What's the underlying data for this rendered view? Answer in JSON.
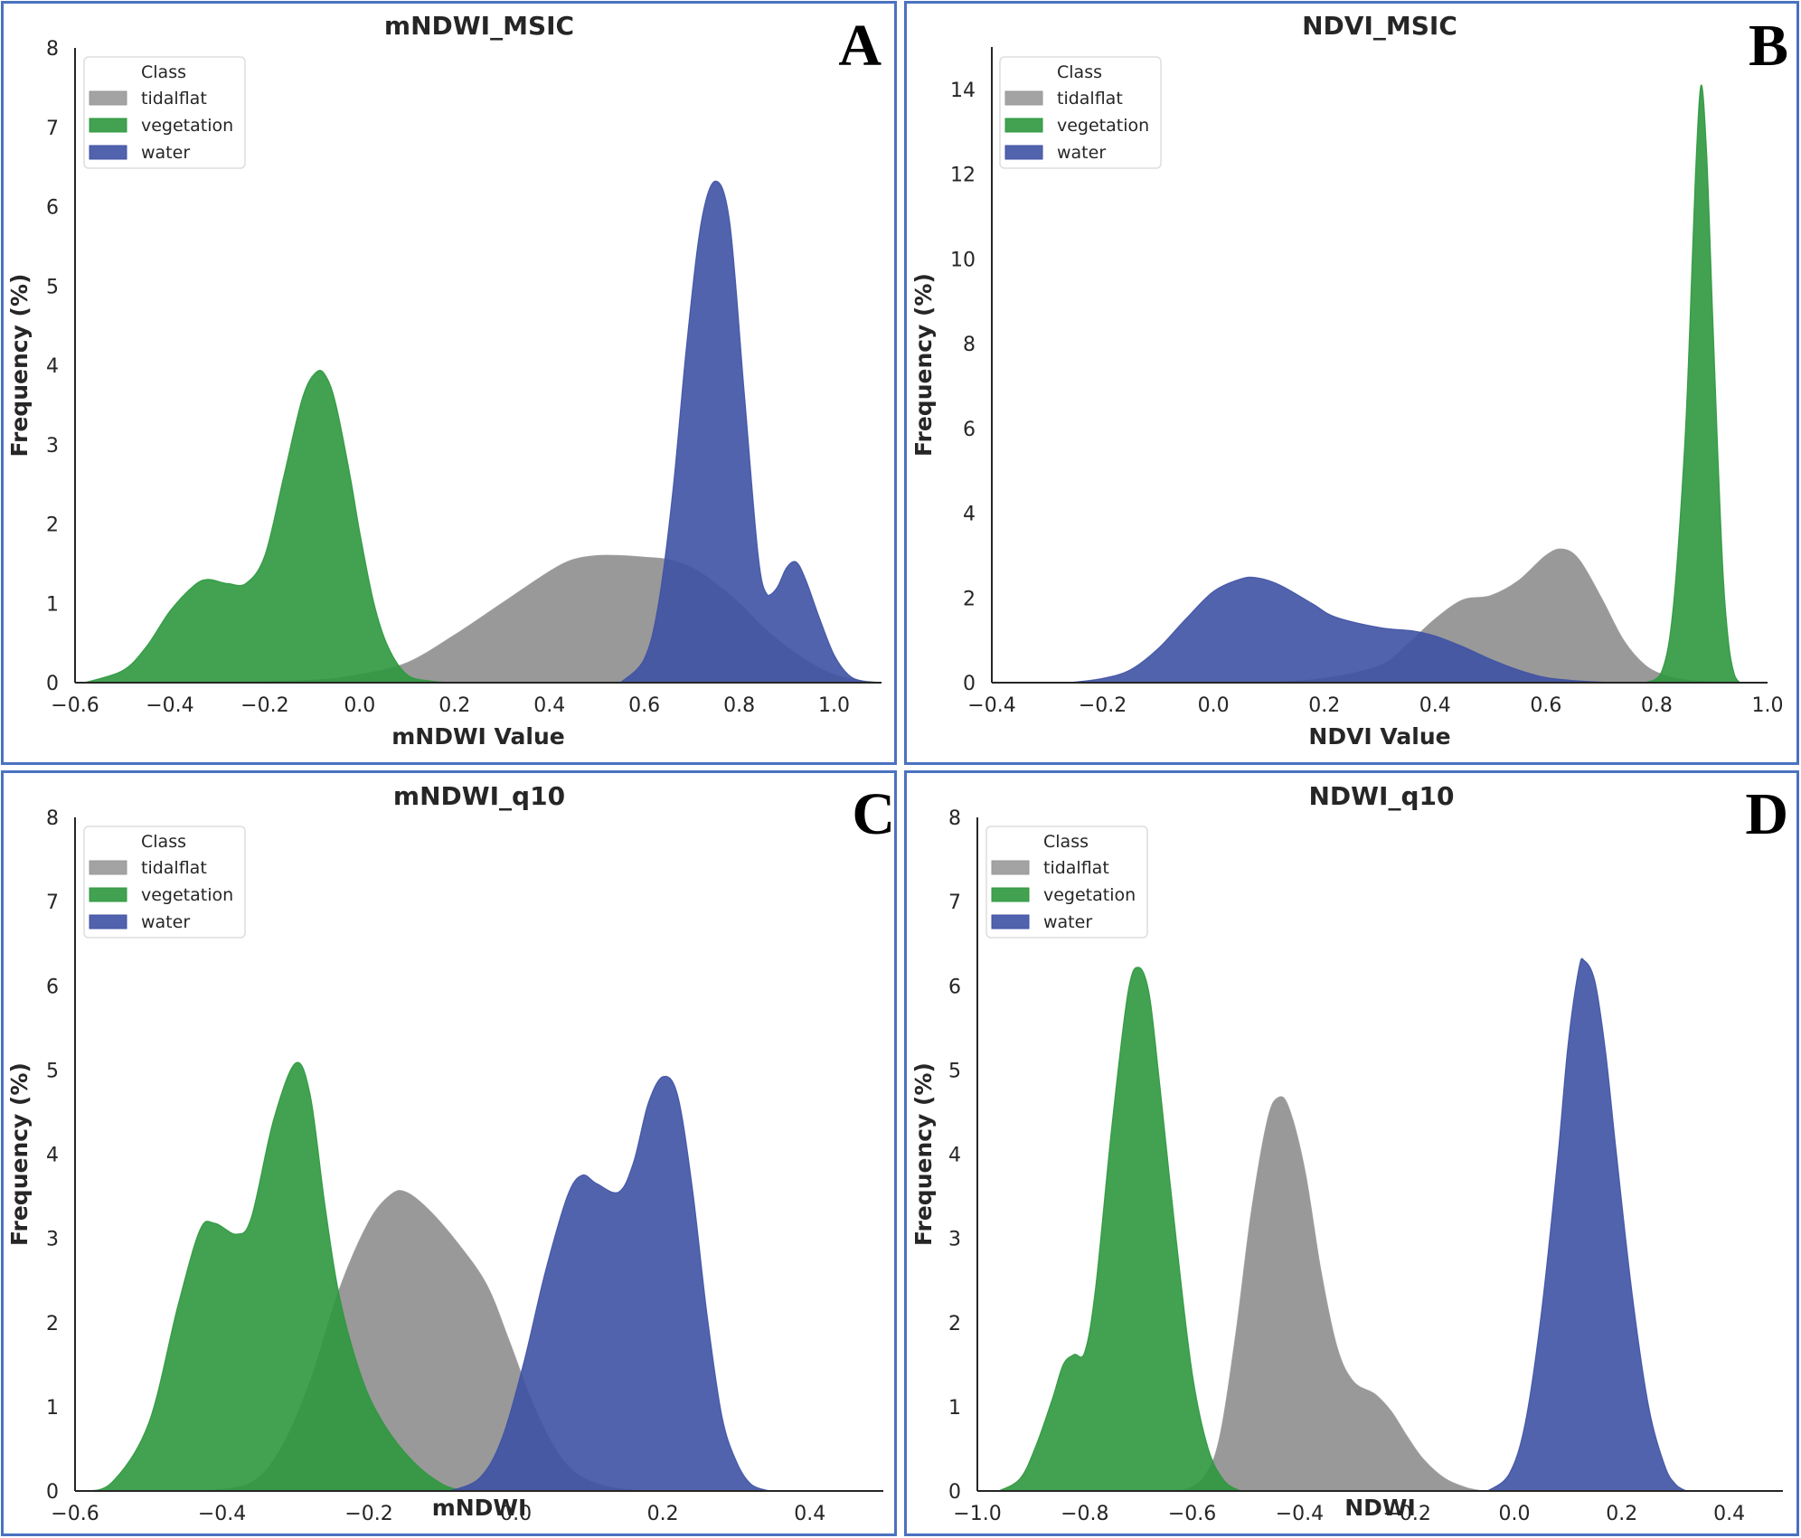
{
  "figure": {
    "panels": [
      "A",
      "B",
      "C",
      "D"
    ]
  },
  "legend": {
    "title": "Class",
    "entries": [
      "tidalflat",
      "vegetation",
      "water"
    ]
  },
  "colors": {
    "tidalflat": "#999999",
    "vegetation": "#2e983e",
    "water": "#3f52a4",
    "panel_border": "#4a72c0",
    "axis": "#262626"
  },
  "chart_data": [
    {
      "type": "area",
      "panel_letter": "A",
      "title": "mNDWI_MSIC",
      "xlabel": "mNDWI Value",
      "ylabel": "Frequency (%)",
      "xlim": [
        -0.6,
        1.1
      ],
      "ylim": [
        0,
        8
      ],
      "xticks": [
        "−0.6",
        "−0.4",
        "−0.2",
        "0.0",
        "0.2",
        "0.4",
        "0.6",
        "0.8",
        "1.0"
      ],
      "xtick_values": [
        -0.6,
        -0.4,
        -0.2,
        0.0,
        0.2,
        0.4,
        0.6,
        0.8,
        1.0
      ],
      "yticks": [
        "0",
        "1",
        "2",
        "3",
        "4",
        "5",
        "6",
        "7",
        "8"
      ],
      "ytick_values": [
        0,
        1,
        2,
        3,
        4,
        5,
        6,
        7,
        8
      ],
      "legend_position": "top-left",
      "series": [
        {
          "name": "tidalflat",
          "x": [
            -0.3,
            -0.1,
            0.0,
            0.1,
            0.2,
            0.3,
            0.4,
            0.45,
            0.5,
            0.55,
            0.6,
            0.65,
            0.7,
            0.75,
            0.8,
            0.85,
            0.9,
            0.95,
            1.0,
            1.05,
            1.1
          ],
          "y": [
            0.0,
            0.03,
            0.1,
            0.25,
            0.6,
            1.0,
            1.4,
            1.55,
            1.6,
            1.6,
            1.58,
            1.55,
            1.45,
            1.25,
            1.0,
            0.7,
            0.45,
            0.25,
            0.1,
            0.03,
            0.0
          ]
        },
        {
          "name": "vegetation",
          "x": [
            -0.58,
            -0.5,
            -0.45,
            -0.4,
            -0.35,
            -0.32,
            -0.28,
            -0.24,
            -0.2,
            -0.16,
            -0.12,
            -0.09,
            -0.07,
            -0.05,
            -0.02,
            0.0,
            0.03,
            0.06,
            0.1,
            0.15,
            0.2
          ],
          "y": [
            0.0,
            0.15,
            0.45,
            0.9,
            1.22,
            1.3,
            1.25,
            1.25,
            1.6,
            2.6,
            3.6,
            3.92,
            3.85,
            3.5,
            2.6,
            1.9,
            1.0,
            0.45,
            0.1,
            0.02,
            0.0
          ]
        },
        {
          "name": "water",
          "x": [
            0.55,
            0.6,
            0.63,
            0.66,
            0.69,
            0.72,
            0.75,
            0.78,
            0.81,
            0.84,
            0.86,
            0.88,
            0.9,
            0.92,
            0.94,
            0.97,
            1.0,
            1.03,
            1.06,
            1.1
          ],
          "y": [
            0.0,
            0.3,
            1.0,
            2.4,
            4.3,
            5.8,
            6.32,
            5.8,
            3.7,
            1.6,
            1.1,
            1.2,
            1.45,
            1.52,
            1.3,
            0.8,
            0.35,
            0.1,
            0.02,
            0.0
          ]
        }
      ]
    },
    {
      "type": "area",
      "panel_letter": "B",
      "title": "NDVI_MSIC",
      "xlabel": "NDVI Value",
      "ylabel": "Frequency (%)",
      "xlim": [
        -0.4,
        1.0
      ],
      "ylim": [
        0,
        15
      ],
      "xticks": [
        "−0.4",
        "−0.2",
        "0.0",
        "0.2",
        "0.4",
        "0.6",
        "0.8",
        "1.0"
      ],
      "xtick_values": [
        -0.4,
        -0.2,
        0.0,
        0.2,
        0.4,
        0.6,
        0.8,
        1.0
      ],
      "yticks": [
        "0",
        "2",
        "4",
        "6",
        "8",
        "10",
        "12",
        "14"
      ],
      "ytick_values": [
        0,
        2,
        4,
        6,
        8,
        10,
        12,
        14
      ],
      "legend_position": "top-left",
      "series": [
        {
          "name": "tidalflat",
          "x": [
            0.1,
            0.2,
            0.3,
            0.35,
            0.4,
            0.45,
            0.5,
            0.55,
            0.6,
            0.63,
            0.66,
            0.7,
            0.74,
            0.78,
            0.82,
            0.86,
            0.9,
            0.93
          ],
          "y": [
            0.0,
            0.1,
            0.4,
            0.9,
            1.5,
            1.95,
            2.05,
            2.4,
            3.0,
            3.15,
            2.9,
            2.0,
            1.0,
            0.4,
            0.15,
            0.05,
            0.02,
            0.0
          ]
        },
        {
          "name": "vegetation",
          "x": [
            0.78,
            0.81,
            0.83,
            0.85,
            0.86,
            0.87,
            0.88,
            0.89,
            0.9,
            0.91,
            0.92,
            0.93,
            0.94,
            0.95
          ],
          "y": [
            0.0,
            0.3,
            1.8,
            5.5,
            8.5,
            12.0,
            14.1,
            12.5,
            9.0,
            5.5,
            2.5,
            0.9,
            0.2,
            0.0
          ]
        },
        {
          "name": "water",
          "x": [
            -0.26,
            -0.2,
            -0.15,
            -0.1,
            -0.05,
            0.0,
            0.05,
            0.08,
            0.12,
            0.18,
            0.22,
            0.3,
            0.36,
            0.4,
            0.45,
            0.5,
            0.55,
            0.6,
            0.65,
            0.7,
            0.75
          ],
          "y": [
            0.0,
            0.1,
            0.3,
            0.8,
            1.5,
            2.15,
            2.45,
            2.47,
            2.3,
            1.85,
            1.55,
            1.3,
            1.22,
            1.1,
            0.85,
            0.55,
            0.3,
            0.12,
            0.05,
            0.01,
            0.0
          ]
        }
      ]
    },
    {
      "type": "area",
      "panel_letter": "C",
      "title": "mNDWI_q10",
      "xlabel": "mNDWI",
      "ylabel": "Frequency (%)",
      "xlim": [
        -0.6,
        0.5
      ],
      "ylim": [
        0,
        8
      ],
      "xticks": [
        "−0.6",
        "−0.4",
        "−0.2",
        "0.0",
        "0.2",
        "0.4"
      ],
      "xtick_values": [
        -0.6,
        -0.4,
        -0.2,
        0.0,
        0.2,
        0.4
      ],
      "yticks": [
        "0",
        "1",
        "2",
        "3",
        "4",
        "5",
        "6",
        "7",
        "8"
      ],
      "ytick_values": [
        0,
        1,
        2,
        3,
        4,
        5,
        6,
        7,
        8
      ],
      "legend_position": "top-left",
      "series": [
        {
          "name": "tidalflat",
          "x": [
            -0.42,
            -0.36,
            -0.32,
            -0.28,
            -0.24,
            -0.2,
            -0.17,
            -0.15,
            -0.12,
            -0.08,
            -0.04,
            -0.01,
            0.02,
            0.05,
            0.08,
            0.12,
            0.16,
            0.2
          ],
          "y": [
            0.0,
            0.1,
            0.5,
            1.3,
            2.4,
            3.2,
            3.52,
            3.55,
            3.35,
            2.95,
            2.45,
            1.8,
            1.1,
            0.55,
            0.22,
            0.06,
            0.01,
            0.0
          ]
        },
        {
          "name": "vegetation",
          "x": [
            -0.59,
            -0.55,
            -0.5,
            -0.46,
            -0.43,
            -0.41,
            -0.38,
            -0.36,
            -0.33,
            -0.3,
            -0.28,
            -0.26,
            -0.24,
            -0.21,
            -0.18,
            -0.14,
            -0.1,
            -0.07
          ],
          "y": [
            0.0,
            0.1,
            0.8,
            2.2,
            3.1,
            3.18,
            3.05,
            3.25,
            4.4,
            5.08,
            4.7,
            3.4,
            2.3,
            1.35,
            0.8,
            0.35,
            0.08,
            0.0
          ]
        },
        {
          "name": "water",
          "x": [
            -0.09,
            -0.05,
            -0.02,
            0.01,
            0.04,
            0.07,
            0.09,
            0.11,
            0.14,
            0.16,
            0.18,
            0.2,
            0.22,
            0.24,
            0.26,
            0.28,
            0.3,
            0.32,
            0.345
          ],
          "y": [
            0.0,
            0.15,
            0.6,
            1.5,
            2.6,
            3.5,
            3.75,
            3.65,
            3.55,
            3.9,
            4.6,
            4.92,
            4.7,
            3.6,
            2.1,
            0.9,
            0.35,
            0.08,
            0.0
          ]
        }
      ]
    },
    {
      "type": "area",
      "panel_letter": "D",
      "title": "NDWI_q10",
      "xlabel": "NDWI",
      "ylabel": "Frequency (%)",
      "xlim": [
        -1.0,
        0.5
      ],
      "ylim": [
        0,
        8
      ],
      "xticks": [
        "−1.0",
        "−0.8",
        "−0.6",
        "−0.4",
        "−0.2",
        "0.0",
        "0.2",
        "0.4"
      ],
      "xtick_values": [
        -1.0,
        -0.8,
        -0.6,
        -0.4,
        -0.2,
        0.0,
        0.2,
        0.4
      ],
      "yticks": [
        "0",
        "1",
        "2",
        "3",
        "4",
        "5",
        "6",
        "7",
        "8"
      ],
      "ytick_values": [
        0,
        1,
        2,
        3,
        4,
        5,
        6,
        7,
        8
      ],
      "legend_position": "top-left",
      "series": [
        {
          "name": "tidalflat",
          "x": [
            -0.62,
            -0.58,
            -0.55,
            -0.52,
            -0.49,
            -0.46,
            -0.44,
            -0.42,
            -0.39,
            -0.36,
            -0.33,
            -0.3,
            -0.26,
            -0.23,
            -0.2,
            -0.17,
            -0.13,
            -0.09,
            -0.06
          ],
          "y": [
            0.0,
            0.15,
            0.6,
            1.8,
            3.3,
            4.4,
            4.67,
            4.55,
            3.8,
            2.6,
            1.7,
            1.3,
            1.15,
            0.95,
            0.65,
            0.38,
            0.15,
            0.04,
            0.0
          ]
        },
        {
          "name": "vegetation",
          "x": [
            -0.96,
            -0.92,
            -0.89,
            -0.86,
            -0.84,
            -0.82,
            -0.8,
            -0.78,
            -0.75,
            -0.72,
            -0.7,
            -0.68,
            -0.66,
            -0.63,
            -0.6,
            -0.57,
            -0.54,
            -0.51
          ],
          "y": [
            0.0,
            0.15,
            0.55,
            1.1,
            1.5,
            1.62,
            1.65,
            2.4,
            4.3,
            5.9,
            6.22,
            5.9,
            4.8,
            3.0,
            1.4,
            0.5,
            0.12,
            0.0
          ]
        },
        {
          "name": "water",
          "x": [
            -0.05,
            -0.01,
            0.02,
            0.05,
            0.08,
            0.1,
            0.12,
            0.13,
            0.15,
            0.17,
            0.19,
            0.22,
            0.25,
            0.28,
            0.3,
            0.32
          ],
          "y": [
            0.0,
            0.2,
            0.8,
            2.1,
            3.9,
            5.3,
            6.2,
            6.3,
            6.05,
            5.2,
            4.0,
            2.3,
            1.0,
            0.3,
            0.08,
            0.0
          ]
        }
      ]
    }
  ]
}
